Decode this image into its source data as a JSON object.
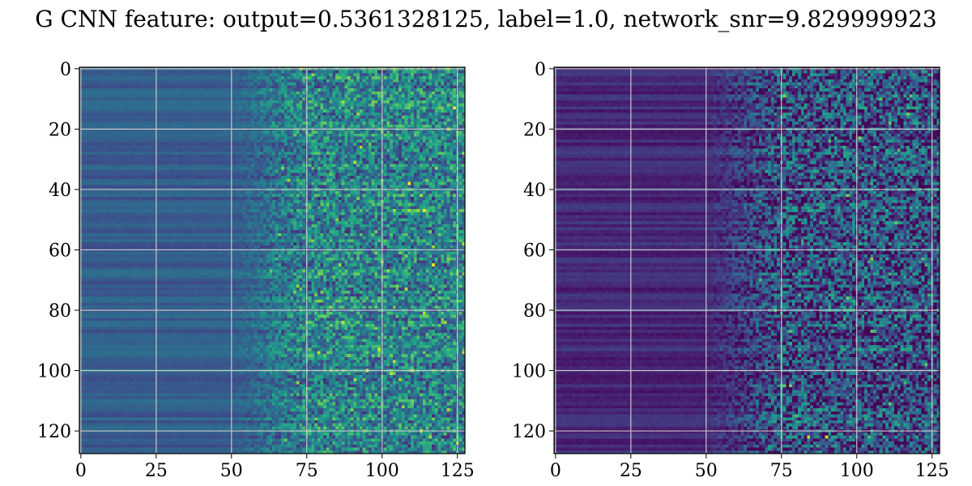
{
  "title": "G CNN feature: output=0.5361328125, label=1.0, network_snr=9.829999923",
  "colors": {
    "colormap": "viridis",
    "grid": "#c8c8c8",
    "frame": "#000000"
  },
  "chart_data": [
    {
      "type": "heatmap",
      "colormap": "viridis",
      "grid": true,
      "xlim": [
        0,
        128
      ],
      "ylim": [
        128,
        0
      ],
      "xticks": [
        0,
        25,
        50,
        75,
        100,
        125
      ],
      "yticks": [
        0,
        20,
        40,
        60,
        80,
        100,
        120
      ],
      "xtick_labels": [
        "0",
        "25",
        "50",
        "75",
        "100",
        "125"
      ],
      "ytick_labels": [
        "0",
        "20",
        "40",
        "60",
        "80",
        "100",
        "120"
      ],
      "rows": 128,
      "cols": 128,
      "value_profile": {
        "left_region_cols": [
          0,
          50
        ],
        "left_level": 0.3,
        "transition_cols": [
          50,
          75
        ],
        "right_level": 0.45,
        "right_variability": 0.25
      },
      "hotspots": [
        {
          "x": 91,
          "y": 31,
          "value": 0.9
        },
        {
          "x": 117,
          "y": 65,
          "value": 0.95
        },
        {
          "x": 91,
          "y": 103,
          "value": 0.9
        },
        {
          "x": 106,
          "y": 103,
          "value": 0.85
        },
        {
          "x": 86,
          "y": 65,
          "value": 0.85
        }
      ]
    },
    {
      "type": "heatmap",
      "colormap": "viridis",
      "grid": true,
      "xlim": [
        0,
        128
      ],
      "ylim": [
        128,
        0
      ],
      "xticks": [
        0,
        25,
        50,
        75,
        100,
        125
      ],
      "yticks": [
        0,
        20,
        40,
        60,
        80,
        100,
        120
      ],
      "xtick_labels": [
        "0",
        "25",
        "50",
        "75",
        "100",
        "125"
      ],
      "ytick_labels": [
        "0",
        "20",
        "40",
        "60",
        "80",
        "100",
        "120"
      ],
      "rows": 128,
      "cols": 128,
      "value_profile": {
        "left_region_cols": [
          0,
          50
        ],
        "left_level": 0.12,
        "transition_cols": [
          50,
          75
        ],
        "right_level": 0.25,
        "right_variability": 0.3
      },
      "hotspots": [
        {
          "x": 84,
          "y": 122,
          "value": 0.9
        },
        {
          "x": 90,
          "y": 122,
          "value": 0.9
        },
        {
          "x": 101,
          "y": 23,
          "value": 0.8
        },
        {
          "x": 118,
          "y": 9,
          "value": 0.75
        }
      ]
    }
  ]
}
